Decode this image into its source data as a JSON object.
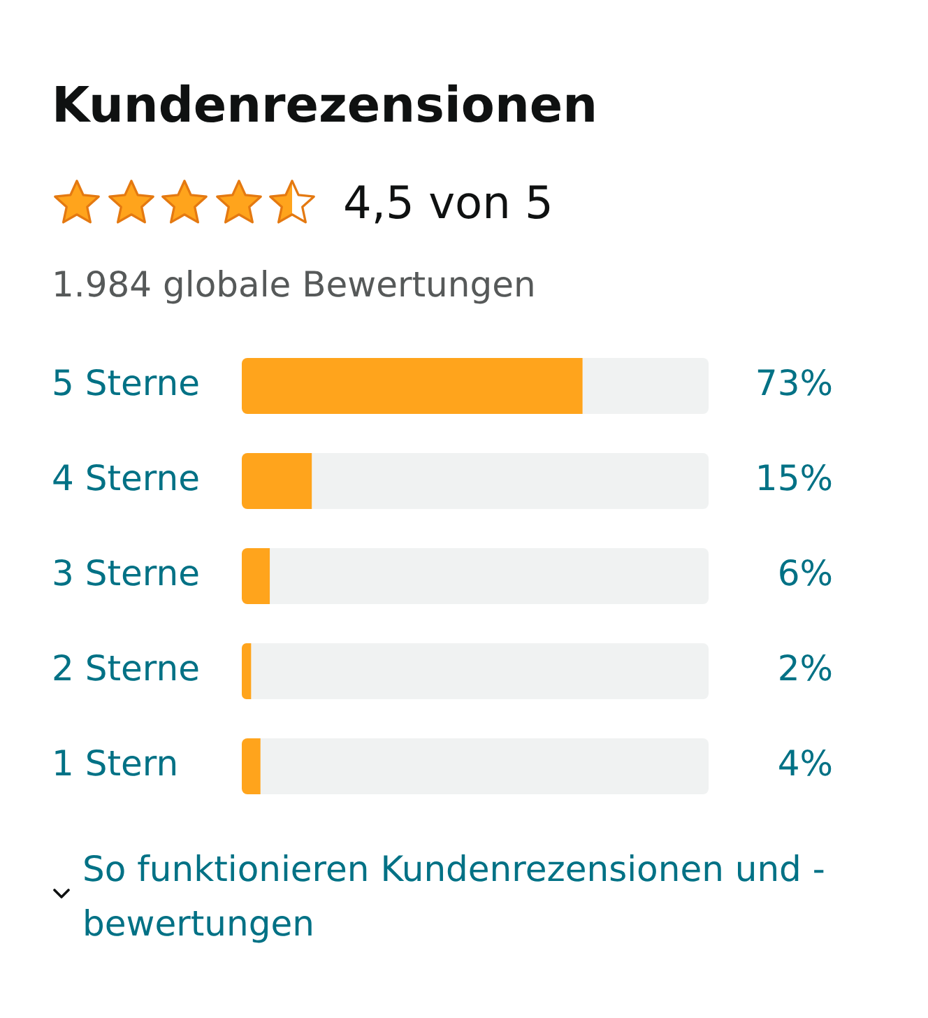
{
  "chart_data": {
    "type": "bar",
    "orientation": "horizontal",
    "stacked": true,
    "title": "Kundenrezensionen",
    "subtitle": "4,5 von 5",
    "annotations": [
      "1.984 globale Bewertungen",
      "So funktionieren Kundenrezensionen und -bewertungen"
    ],
    "categories": [
      "5 Sterne",
      "4 Sterne",
      "3 Sterne",
      "2 Sterne",
      "1 Stern"
    ],
    "series": [
      {
        "color": "#ffa41c",
        "values": [
          73,
          15,
          6,
          2,
          4
        ],
        "value_labels": [
          "73%",
          "15%",
          "6%",
          "2%",
          "4%"
        ]
      },
      {
        "color": "#f0f2f2",
        "values": [
          27,
          85,
          94,
          98,
          96
        ]
      }
    ],
    "tick_labels": "y"
  }
}
